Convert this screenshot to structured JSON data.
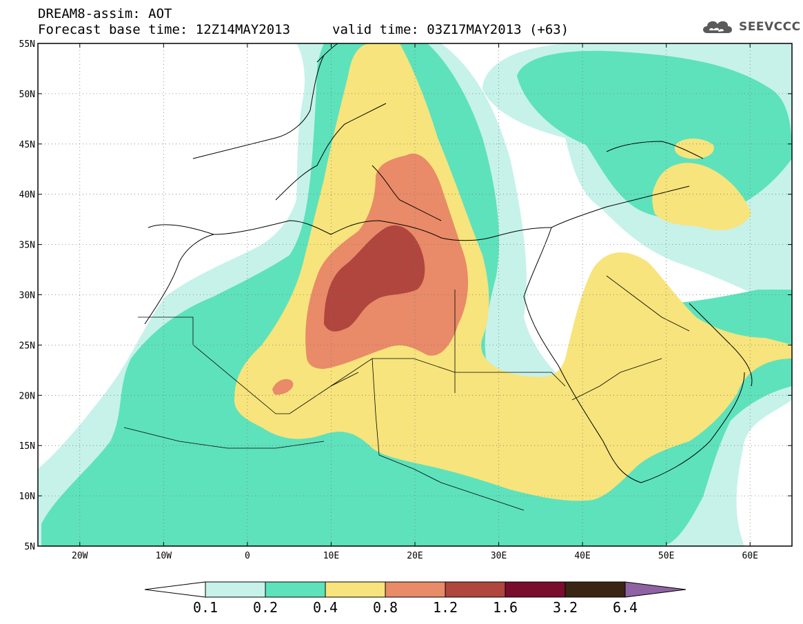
{
  "header": {
    "title_line1": "DREAM8-assim: AOT",
    "title_line2": "Forecast base time: 12Z14MAY2013",
    "valid_time": "valid time: 03Z17MAY2013 (+63)"
  },
  "logo": {
    "text": "SEEVCCC",
    "icon": "cloud-icon"
  },
  "map": {
    "type": "choropleth-contour-map",
    "variable": "AOT",
    "lon_range": [
      -25,
      65
    ],
    "lat_range": [
      5,
      55
    ],
    "lon_ticks": [
      "20W",
      "10W",
      "0",
      "10E",
      "20E",
      "30E",
      "40E",
      "50E",
      "60E"
    ],
    "lat_ticks": [
      "55N",
      "50N",
      "45N",
      "40N",
      "35N",
      "30N",
      "25N",
      "20N",
      "15N",
      "10N",
      "5N"
    ],
    "grid": "dotted"
  },
  "colorbar": {
    "labels": [
      "0.1",
      "0.2",
      "0.4",
      "0.8",
      "1.2",
      "1.6",
      "3.2",
      "6.4"
    ],
    "colors": [
      "#ffffff",
      "#c6f2ea",
      "#5ee2bb",
      "#f7e47c",
      "#e98a68",
      "#b0463e",
      "#7a0c2d",
      "#3a2514",
      "#8f63a3"
    ]
  }
}
